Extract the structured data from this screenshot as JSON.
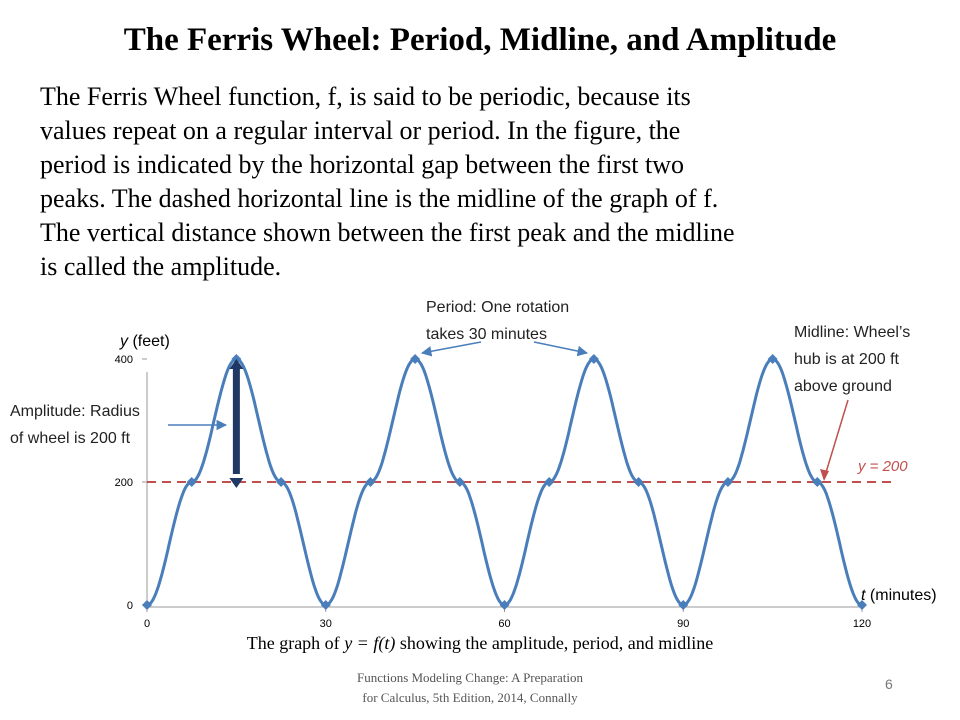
{
  "slide": {
    "title": "The Ferris Wheel: Period, Midline, and Amplitude",
    "body_lines": [
      "The Ferris Wheel function, f, is said to be periodic, because its",
      "values repeat on a regular interval or period. In the figure, the",
      "period is indicated by the horizontal gap between the first two",
      "peaks. The dashed horizontal line is the midline of the graph of f.",
      "The vertical distance shown between the first peak and the midline",
      "is called the amplitude."
    ],
    "caption": {
      "prefix": "The graph of ",
      "formula": "y = f(t)",
      "suffix": " showing the amplitude, period, and midline"
    },
    "footer_lines": [
      "Functions Modeling Change: A Preparation",
      "for Calculus, 5th Edition, 2014, Connally"
    ],
    "page_number": "6"
  },
  "chart_data": {
    "type": "line",
    "x": [
      0,
      7.5,
      15,
      22.5,
      30,
      37.5,
      45,
      52.5,
      60,
      67.5,
      75,
      82.5,
      90,
      97.5,
      105,
      112.5,
      120
    ],
    "series": [
      {
        "values": [
          0,
          200,
          400,
          200,
          0,
          200,
          400,
          200,
          0,
          200,
          400,
          200,
          0,
          200,
          400,
          200,
          0
        ]
      }
    ],
    "xlim": [
      0,
      120
    ],
    "ylim": [
      0,
      400
    ],
    "x_ticks": [
      "0",
      "30",
      "60",
      "90",
      "120"
    ],
    "y_ticks": [
      "0",
      "200",
      "400"
    ],
    "ylabel_var": "y",
    "ylabel_unit": "(feet)",
    "xlabel_var": "t",
    "xlabel_unit": "(minutes)",
    "midline": {
      "y": 200,
      "label": "y = 200"
    },
    "amplitude_marker": {
      "x": 15,
      "from": 200,
      "to": 400
    },
    "annotations": {
      "amplitude": [
        "Amplitude: Radius",
        "of  wheel is 200 ft"
      ],
      "period": [
        "Period: One rotation",
        "takes 30 minutes"
      ],
      "midline": [
        "Midline: Wheel’s",
        "hub is at 200 ft",
        "above ground"
      ]
    },
    "colors": {
      "series": "#4a7ebb",
      "midline": "#c0504d",
      "arrow": "#4a7ebb",
      "amplitude_bar": "#1f3864"
    }
  }
}
